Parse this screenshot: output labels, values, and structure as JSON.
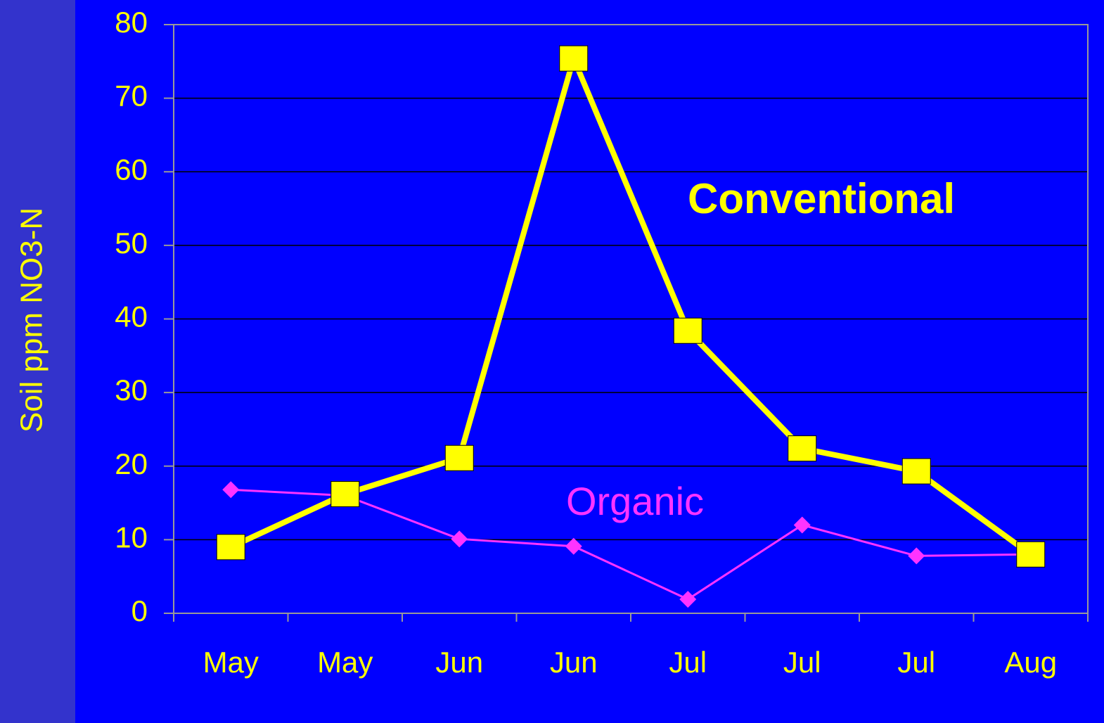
{
  "chart_data": {
    "type": "line",
    "y_label": "Soil ppm NO3-N",
    "categories": [
      "May",
      "May",
      "Jun",
      "Jun",
      "Jul",
      "Jul",
      "Jul",
      "Aug"
    ],
    "series": [
      {
        "name": "Conventional",
        "color": "#ffff00",
        "values": [
          9,
          16.2,
          21.1,
          75.4,
          38.4,
          22.4,
          19.3,
          8
        ]
      },
      {
        "name": "Organic",
        "color": "#ff33ff",
        "values": [
          16.8,
          16,
          10.1,
          9.1,
          1.9,
          12,
          7.8,
          8
        ]
      }
    ],
    "ylim": [
      0,
      80
    ],
    "yticks": [
      0,
      10,
      20,
      30,
      40,
      50,
      60,
      70,
      80
    ],
    "grid": true
  }
}
